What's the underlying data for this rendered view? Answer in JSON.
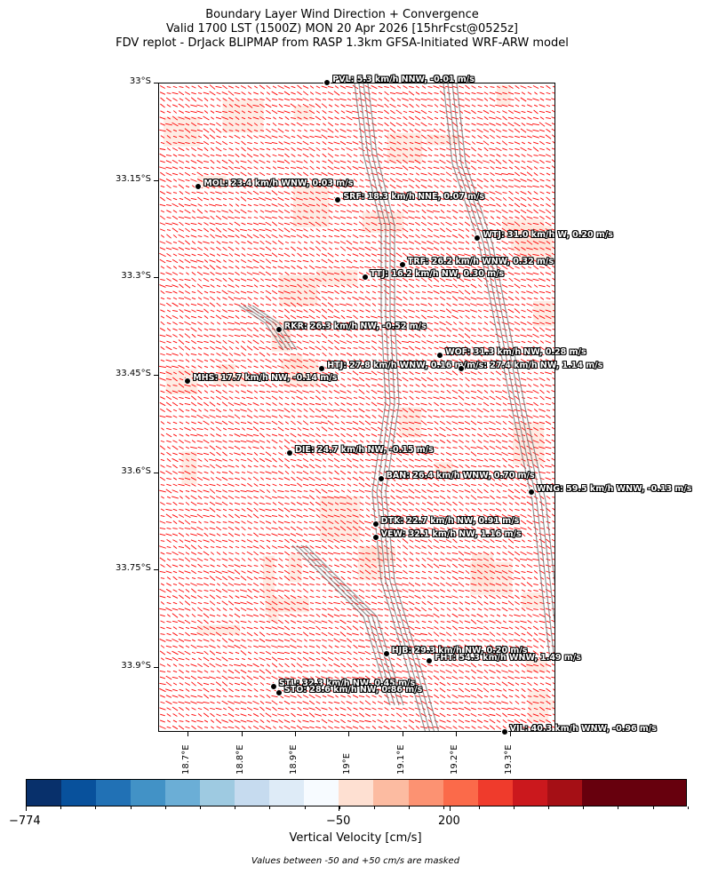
{
  "title": {
    "line1": "Boundary Layer Wind Direction + Convergence",
    "line2": "Valid 1700 LST (1500Z) MON 20 Apr 2026 [15hrFcst@0525z]",
    "line3": "FDV replot - DrJack BLIPMAP from RASP 1.3km GFSA-Initiated WRF-ARW model"
  },
  "axes": {
    "lat_ticks": [
      "33°S",
      "33.15°S",
      "33.3°S",
      "33.45°S",
      "33.6°S",
      "33.75°S",
      "33.9°S"
    ],
    "lon_ticks": [
      "18.7°E",
      "18.8°E",
      "18.9°E",
      "19°E",
      "19.1°E",
      "19.2°E",
      "19.3°E"
    ],
    "lat_range": [
      -33.0,
      -34.0
    ],
    "lon_range": [
      18.645,
      19.385
    ]
  },
  "stations": [
    {
      "code": "PVL",
      "label": "PVL: 5.3 km/h NNW, -0.01 m/s",
      "lon": 18.96,
      "lat": -33.0
    },
    {
      "code": "MOL",
      "label": "MOL: 23.4 km/h WNW, 0.03 m/s",
      "lon": 18.72,
      "lat": -33.16
    },
    {
      "code": "SRF",
      "label": "SRF: 18.3 km/h NNE, 0.07 m/s",
      "lon": 18.98,
      "lat": -33.18
    },
    {
      "code": "WTJ",
      "label": "WTJ: 31.0 km/h W, 0.20 m/s",
      "lon": 19.24,
      "lat": -33.24
    },
    {
      "code": "TRF",
      "label": "TRF: 26.2 km/h WNW, 0.32 m/s",
      "lon": 19.1,
      "lat": -33.28
    },
    {
      "code": "TTJ",
      "label": "TTJ: 16.2 km/h NW, 0.30 m/s",
      "lon": 19.03,
      "lat": -33.3
    },
    {
      "code": "RKR",
      "label": "RKR: 26.3 km/h NW, -0.52 m/s",
      "lon": 18.87,
      "lat": -33.38
    },
    {
      "code": "WOF",
      "label": "WOF: 31.3 km/h NW, 0.28 m/s",
      "lon": 19.17,
      "lat": -33.42
    },
    {
      "code": "HTJ",
      "label": "HTJ: 27.8 km/h WNW, 0.16 m/s",
      "lon": 18.95,
      "lat": -33.44
    },
    {
      "code": "XXX",
      "label": "m/s: 27.4 km/h NW, 1.14 m/s",
      "lon": 19.21,
      "lat": -33.44
    },
    {
      "code": "MHS",
      "label": "MHS: 17.7 km/h NW, -0.14 m/s",
      "lon": 18.7,
      "lat": -33.46
    },
    {
      "code": "DIE",
      "label": "DIE: 24.7 km/h NW, -0.15 m/s",
      "lon": 18.89,
      "lat": -33.57
    },
    {
      "code": "BAN",
      "label": "BAN: 26.4 km/h WNW, 0.70 m/s",
      "lon": 19.06,
      "lat": -33.61
    },
    {
      "code": "WNG",
      "label": "WNG: 59.5 km/h WNW, -0.13 m/s",
      "lon": 19.34,
      "lat": -33.63
    },
    {
      "code": "DTK",
      "label": "DTK: 22.7 km/h NW, 0.91 m/s",
      "lon": 19.05,
      "lat": -33.68
    },
    {
      "code": "VEW",
      "label": "VEW: 32.1 km/h NW, 1.16 m/s",
      "lon": 19.05,
      "lat": -33.7
    },
    {
      "code": "HJB",
      "label": "HJB: 29.3 km/h NW, 0.20 m/s",
      "lon": 19.07,
      "lat": -33.88
    },
    {
      "code": "FHT",
      "label": "FHT: 54.3 km/h WNW, 1.49 m/s",
      "lon": 19.15,
      "lat": -33.89
    },
    {
      "code": "STL",
      "label": "STL: 32.3 km/h NW, 0.45 m/s",
      "lon": 18.86,
      "lat": -33.93
    },
    {
      "code": "STO",
      "label": "STO: 28.6 km/h NW, 0.86 m/s",
      "lon": 18.87,
      "lat": -33.94
    },
    {
      "code": "VIL",
      "label": "VIL: 40.3 km/h WNW, -0.96 m/s",
      "lon": 19.29,
      "lat": -34.0
    }
  ],
  "colorbar": {
    "title": "Vertical Velocity [cm/s]",
    "note": "Values between -50 and +50 cm/s are masked",
    "tick_labels": [
      "−774",
      "−50",
      "200"
    ],
    "colors": [
      "#08306b",
      "#08519c",
      "#2171b5",
      "#4292c6",
      "#6baed6",
      "#9ecae1",
      "#c6dbef",
      "#deebf7",
      "#f7fbff",
      "#fee0d2",
      "#fcbba1",
      "#fc9272",
      "#fb6a4a",
      "#ef3b2c",
      "#cb181d",
      "#a50f15",
      "#67000d",
      "#67000d",
      "#67000d"
    ]
  },
  "wind_arrow_color": "#ff0000",
  "contour_color": "#666666"
}
